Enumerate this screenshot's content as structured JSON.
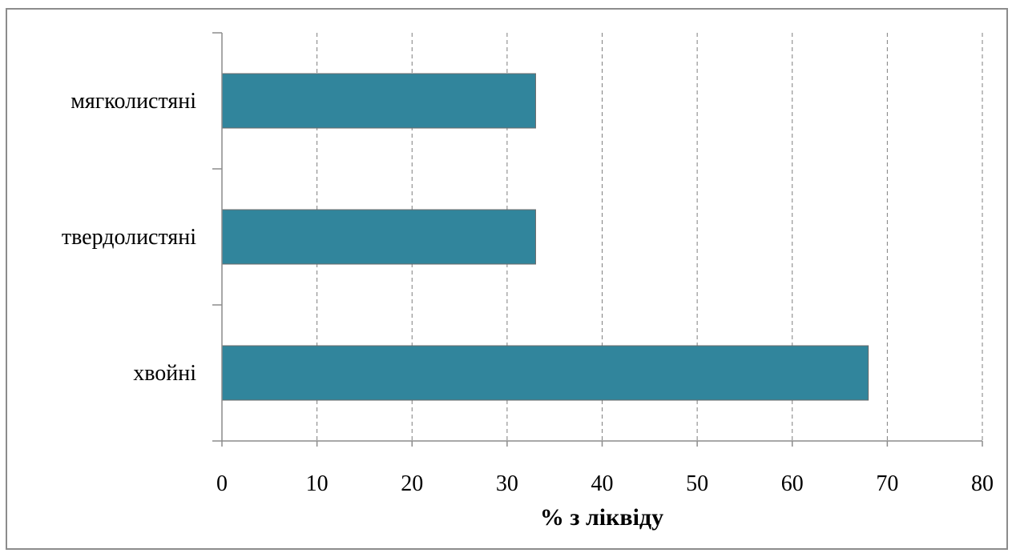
{
  "chart_data": {
    "type": "bar",
    "orientation": "horizontal",
    "categories": [
      "хвойні",
      "твердолистяні",
      "мягколистяні"
    ],
    "values": [
      68,
      33,
      33
    ],
    "xlabel": "% з ліквіду",
    "ylabel": "",
    "xlim": [
      0,
      80
    ],
    "xticks": [
      "0",
      "10",
      "20",
      "30",
      "40",
      "50",
      "60",
      "70",
      "80"
    ],
    "grid": "vertical-dashed",
    "bar_color": "#31859c"
  }
}
